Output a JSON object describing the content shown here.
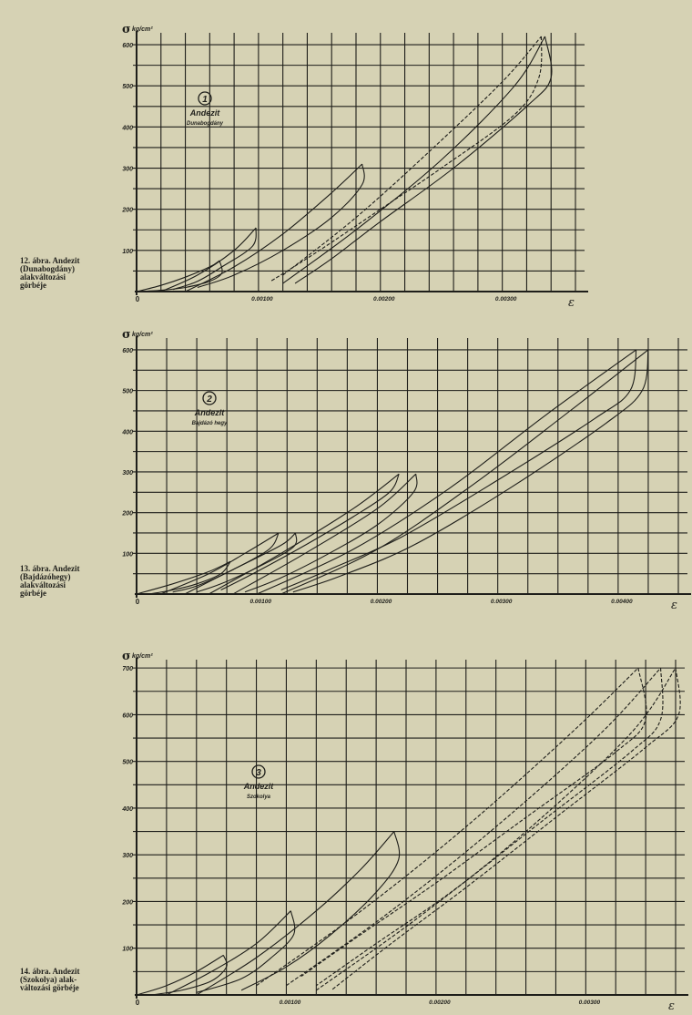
{
  "captions": [
    "12. ábra. Andezit\n(Dunabogdány)\nalakváltozási\ngörbéje",
    "13. ábra. Andezit\n(Bajdázóhegy)\nalakváltozási\ngörbéje",
    "14. ábra. Andezit\n(Szokolya) alak-\nváltozási görbéje"
  ],
  "chart_data": [
    {
      "type": "line",
      "ylabel_symbol": "σ",
      "yunit": "kg/cm²",
      "xlabel_symbol": "ε",
      "marker": "1",
      "label_main": "Andezit",
      "label_sub": "Dunabogdány",
      "xlim": [
        0,
        0.0036
      ],
      "ylim": [
        0,
        620
      ],
      "x_tick_labels": [
        [
          0.001,
          "0.00100"
        ],
        [
          0.002,
          "0.00200"
        ],
        [
          0.003,
          "0.00300"
        ]
      ],
      "y_tick_labels": [
        100,
        200,
        300,
        400,
        500,
        600
      ],
      "grid": true,
      "series": [
        {
          "x": [
            0,
            0.0002,
            0.0004,
            0.0006,
            0.00068
          ],
          "y": [
            0,
            15,
            35,
            60,
            75
          ],
          "dash": false
        },
        {
          "x": [
            0.00068,
            0.0007,
            0.0006,
            0.0004,
            0.0002,
            0
          ],
          "y": [
            75,
            45,
            25,
            10,
            3,
            0
          ],
          "dash": false
        },
        {
          "x": [
            0.0002,
            0.0005,
            0.0008,
            0.00098
          ],
          "y": [
            0,
            40,
            100,
            155
          ],
          "dash": false
        },
        {
          "x": [
            0.00098,
            0.00095,
            0.0007,
            0.0005,
            0.0003
          ],
          "y": [
            155,
            110,
            60,
            25,
            5
          ],
          "dash": false
        },
        {
          "x": [
            0.0004,
            0.0008,
            0.0012,
            0.0016,
            0.00185
          ],
          "y": [
            0,
            60,
            140,
            240,
            310
          ],
          "dash": false
        },
        {
          "x": [
            0.00185,
            0.00185,
            0.0016,
            0.0012,
            0.0008,
            0.0005
          ],
          "y": [
            310,
            260,
            180,
            100,
            40,
            10
          ],
          "dash": false
        },
        {
          "x": [
            0.0012,
            0.0018,
            0.0024,
            0.003,
            0.00332
          ],
          "y": [
            40,
            180,
            340,
            510,
            620
          ],
          "dash": true
        },
        {
          "x": [
            0.00332,
            0.0033,
            0.0031,
            0.0025,
            0.002,
            0.0015,
            0.0011
          ],
          "y": [
            620,
            520,
            430,
            300,
            200,
            100,
            25
          ],
          "dash": true
        },
        {
          "x": [
            0.0012,
            0.0018,
            0.0025,
            0.0031,
            0.00335
          ],
          "y": [
            20,
            150,
            320,
            500,
            620
          ],
          "dash": false
        },
        {
          "x": [
            0.00335,
            0.0034,
            0.0032,
            0.0026,
            0.002,
            0.0016,
            0.0013
          ],
          "y": [
            620,
            520,
            450,
            300,
            170,
            80,
            20
          ],
          "dash": false
        }
      ]
    },
    {
      "type": "line",
      "ylabel_symbol": "σ",
      "yunit": "kg/cm²",
      "xlabel_symbol": "ε",
      "marker": "2",
      "label_main": "Andezit",
      "label_sub": "Bajdázó hegy",
      "xlim": [
        0,
        0.0045
      ],
      "ylim": [
        0,
        620
      ],
      "x_tick_labels": [
        [
          0.001,
          "0.00100"
        ],
        [
          0.002,
          "0.00200"
        ],
        [
          0.003,
          "0.00300"
        ],
        [
          0.004,
          "0.00400"
        ]
      ],
      "y_tick_labels": [
        100,
        200,
        300,
        400,
        500,
        600
      ],
      "grid": true,
      "series": [
        {
          "x": [
            0,
            0.0003,
            0.0006,
            0.00078
          ],
          "y": [
            0,
            25,
            55,
            80
          ],
          "dash": false
        },
        {
          "x": [
            0.00078,
            0.0007,
            0.0005,
            0.0003,
            0.0001
          ],
          "y": [
            80,
            50,
            25,
            10,
            0
          ],
          "dash": false
        },
        {
          "x": [
            0.0002,
            0.0006,
            0.0009,
            0.00118
          ],
          "y": [
            0,
            50,
            100,
            150
          ],
          "dash": false
        },
        {
          "x": [
            0.00118,
            0.0011,
            0.0008,
            0.0005,
            0.0003
          ],
          "y": [
            150,
            110,
            60,
            20,
            5
          ],
          "dash": false
        },
        {
          "x": [
            0.0004,
            0.0008,
            0.0012,
            0.00132
          ],
          "y": [
            0,
            60,
            120,
            150
          ],
          "dash": false
        },
        {
          "x": [
            0.00132,
            0.0013,
            0.001,
            0.0007,
            0.0005
          ],
          "y": [
            150,
            115,
            65,
            25,
            5
          ],
          "dash": false
        },
        {
          "x": [
            0.0006,
            0.0012,
            0.0018,
            0.00218
          ],
          "y": [
            0,
            100,
            210,
            295
          ],
          "dash": false
        },
        {
          "x": [
            0.00218,
            0.0021,
            0.0018,
            0.0014,
            0.001,
            0.0007
          ],
          "y": [
            295,
            250,
            190,
            120,
            55,
            10
          ],
          "dash": false
        },
        {
          "x": [
            0.0008,
            0.0014,
            0.002,
            0.00232
          ],
          "y": [
            0,
            100,
            210,
            295
          ],
          "dash": false
        },
        {
          "x": [
            0.00232,
            0.0023,
            0.002,
            0.0016,
            0.0012,
            0.0009
          ],
          "y": [
            295,
            250,
            170,
            100,
            40,
            5
          ],
          "dash": false
        },
        {
          "x": [
            0.001,
            0.0018,
            0.0026,
            0.0034,
            0.00415
          ],
          "y": [
            0,
            110,
            260,
            440,
            600
          ],
          "dash": false
        },
        {
          "x": [
            0.00415,
            0.0041,
            0.0038,
            0.003,
            0.0022,
            0.0016,
            0.0012
          ],
          "y": [
            600,
            500,
            430,
            280,
            140,
            60,
            10
          ],
          "dash": false
        },
        {
          "x": [
            0.0012,
            0.002,
            0.0028,
            0.0036,
            0.00425
          ],
          "y": [
            0,
            110,
            270,
            450,
            600
          ],
          "dash": false
        },
        {
          "x": [
            0.00425,
            0.0042,
            0.0039,
            0.0031,
            0.0023,
            0.0017,
            0.0013
          ],
          "y": [
            600,
            500,
            420,
            260,
            120,
            45,
            5
          ],
          "dash": false
        }
      ]
    },
    {
      "type": "line",
      "ylabel_symbol": "σ",
      "yunit": "kg/cm²",
      "xlabel_symbol": "ε",
      "marker": "3",
      "label_main": "Andezit",
      "label_sub": "Szokolya",
      "xlim": [
        0,
        0.0036
      ],
      "ylim": [
        0,
        710
      ],
      "x_tick_labels": [
        [
          0.001,
          "0.00100"
        ],
        [
          0.002,
          "0.00200"
        ],
        [
          0.003,
          "0.00300"
        ]
      ],
      "y_tick_labels": [
        100,
        200,
        300,
        400,
        500,
        600,
        700
      ],
      "grid": true,
      "series": [
        {
          "x": [
            0,
            0.0002,
            0.0004,
            0.00058
          ],
          "y": [
            0,
            20,
            50,
            85
          ],
          "dash": false
        },
        {
          "x": [
            0.00058,
            0.0006,
            0.0005,
            0.0003,
            0.0001
          ],
          "y": [
            85,
            60,
            30,
            10,
            0
          ],
          "dash": false
        },
        {
          "x": [
            0.0002,
            0.0005,
            0.0008,
            0.00103
          ],
          "y": [
            0,
            50,
            110,
            180
          ],
          "dash": false
        },
        {
          "x": [
            0.00103,
            0.00105,
            0.0009,
            0.0007,
            0.0004
          ],
          "y": [
            180,
            130,
            80,
            35,
            5
          ],
          "dash": false
        },
        {
          "x": [
            0.0004,
            0.0008,
            0.0012,
            0.0015,
            0.00172
          ],
          "y": [
            0,
            80,
            180,
            270,
            350
          ],
          "dash": false
        },
        {
          "x": [
            0.00172,
            0.00175,
            0.0016,
            0.0013,
            0.001,
            0.0007
          ],
          "y": [
            350,
            290,
            220,
            130,
            60,
            10
          ],
          "dash": false
        },
        {
          "x": [
            0.0008,
            0.0015,
            0.0022,
            0.0029,
            0.00335
          ],
          "y": [
            20,
            180,
            360,
            560,
            700
          ],
          "dash": true
        },
        {
          "x": [
            0.00335,
            0.0034,
            0.0032,
            0.0026,
            0.002,
            0.0015,
            0.0011
          ],
          "y": [
            700,
            590,
            520,
            380,
            240,
            130,
            40
          ],
          "dash": true
        },
        {
          "x": [
            0.001,
            0.0017,
            0.0024,
            0.0031,
            0.0035
          ],
          "y": [
            20,
            180,
            360,
            560,
            700
          ],
          "dash": true
        },
        {
          "x": [
            0.0035,
            0.0035,
            0.0033,
            0.0027,
            0.0021,
            0.0016,
            0.0012
          ],
          "y": [
            700,
            590,
            520,
            370,
            220,
            110,
            20
          ],
          "dash": true
        },
        {
          "x": [
            0.0012,
            0.0019,
            0.0026,
            0.0033,
            0.0036
          ],
          "y": [
            10,
            170,
            350,
            560,
            700
          ],
          "dash": true
        },
        {
          "x": [
            0.0036,
            0.00362,
            0.0034,
            0.0028,
            0.0022,
            0.0017,
            0.0013
          ],
          "y": [
            700,
            600,
            530,
            380,
            230,
            110,
            10
          ],
          "dash": true
        }
      ]
    }
  ]
}
